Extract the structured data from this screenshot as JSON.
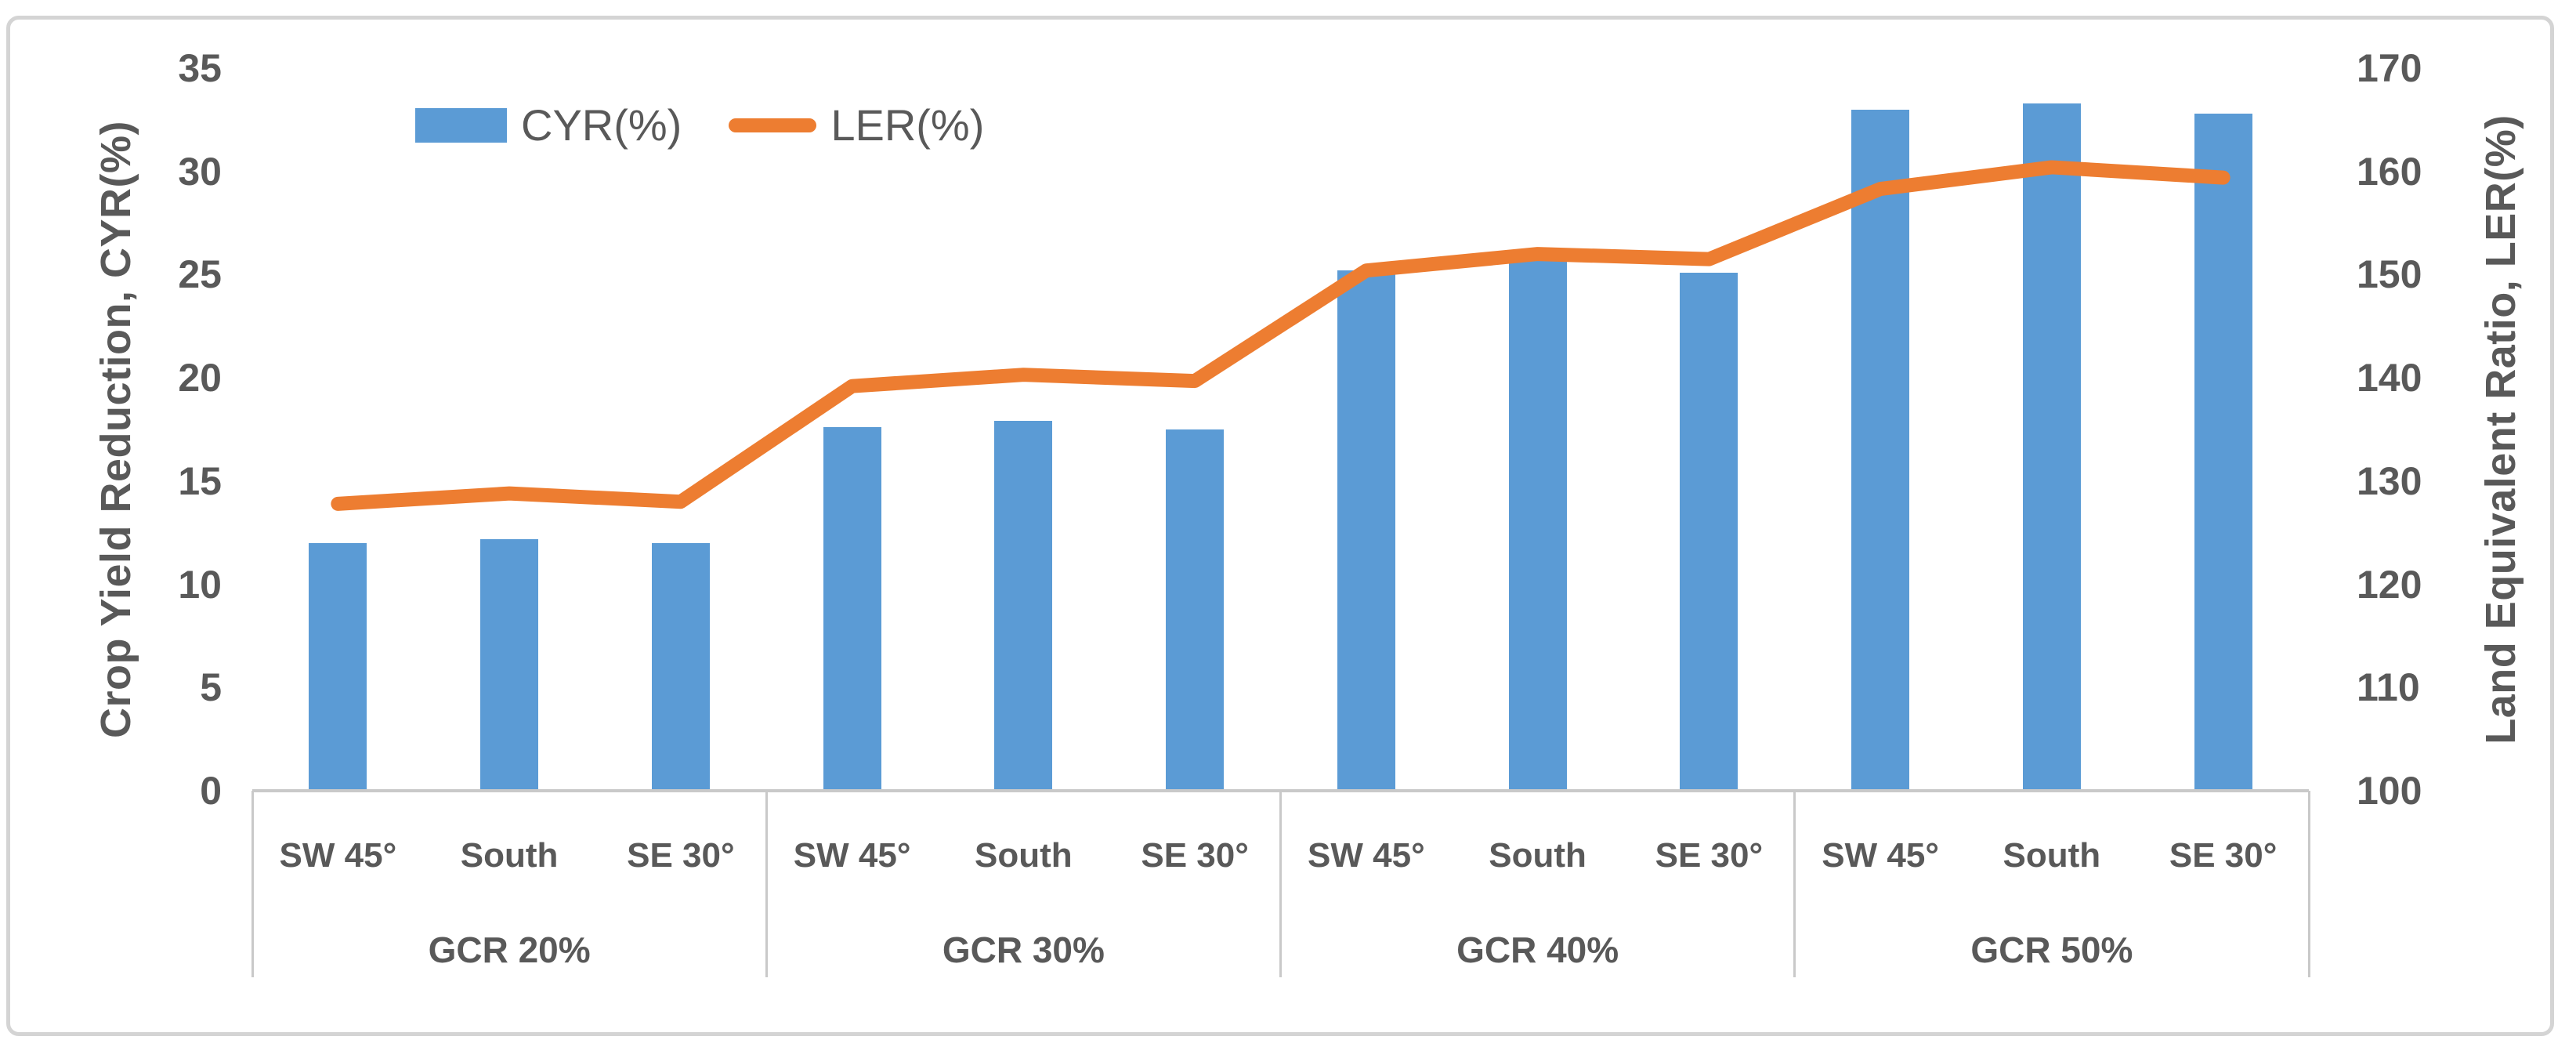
{
  "figure": {
    "background": "#ffffff",
    "border_color": "#d4d4d4",
    "axis_line_color": "#c9c9c9",
    "text_color": "#595959"
  },
  "legend": {
    "position": "top-left-inside",
    "items": [
      {
        "label": "CYR(%)",
        "marker": "bar-swatch",
        "color": "#5B9BD5"
      },
      {
        "label": "LER(%)",
        "marker": "line-swatch",
        "color": "#ED7D31"
      }
    ]
  },
  "left_axis": {
    "title": "Crop Yield Reduction, CYR(%)",
    "min": 0,
    "max": 35,
    "step": 5,
    "ticks": [
      35,
      30,
      25,
      20,
      15,
      10,
      5,
      0
    ]
  },
  "right_axis": {
    "title": "Land Equivalent Ratio, LER(%)",
    "min": 100,
    "max": 170,
    "step": 10,
    "ticks": [
      170,
      160,
      150,
      140,
      130,
      120,
      110,
      100
    ]
  },
  "chart_data": {
    "type": "bar+line",
    "grid": false,
    "legend_position": "top-left-inside",
    "left_ylim": [
      0,
      35
    ],
    "right_ylim": [
      100,
      170
    ],
    "groups": [
      {
        "label": "GCR 20%",
        "categories": [
          "SW 45°",
          "South",
          "SE 30°"
        ]
      },
      {
        "label": "GCR 30%",
        "categories": [
          "SW 45°",
          "South",
          "SE 30°"
        ]
      },
      {
        "label": "GCR 40%",
        "categories": [
          "SW 45°",
          "South",
          "SE 30°"
        ]
      },
      {
        "label": "GCR 50%",
        "categories": [
          "SW 45°",
          "South",
          "SE 30°"
        ]
      }
    ],
    "series": [
      {
        "name": "CYR(%)",
        "type": "bar",
        "axis": "left",
        "color": "#5B9BD5",
        "values": [
          12.0,
          12.2,
          12.0,
          17.6,
          17.9,
          17.5,
          25.2,
          25.8,
          25.1,
          33.0,
          33.3,
          32.8
        ]
      },
      {
        "name": "LER(%)",
        "type": "line",
        "axis": "right",
        "color": "#ED7D31",
        "values": [
          127.8,
          128.8,
          128.0,
          139.2,
          140.3,
          139.7,
          150.4,
          152.0,
          151.5,
          158.3,
          160.4,
          159.4
        ]
      }
    ]
  }
}
